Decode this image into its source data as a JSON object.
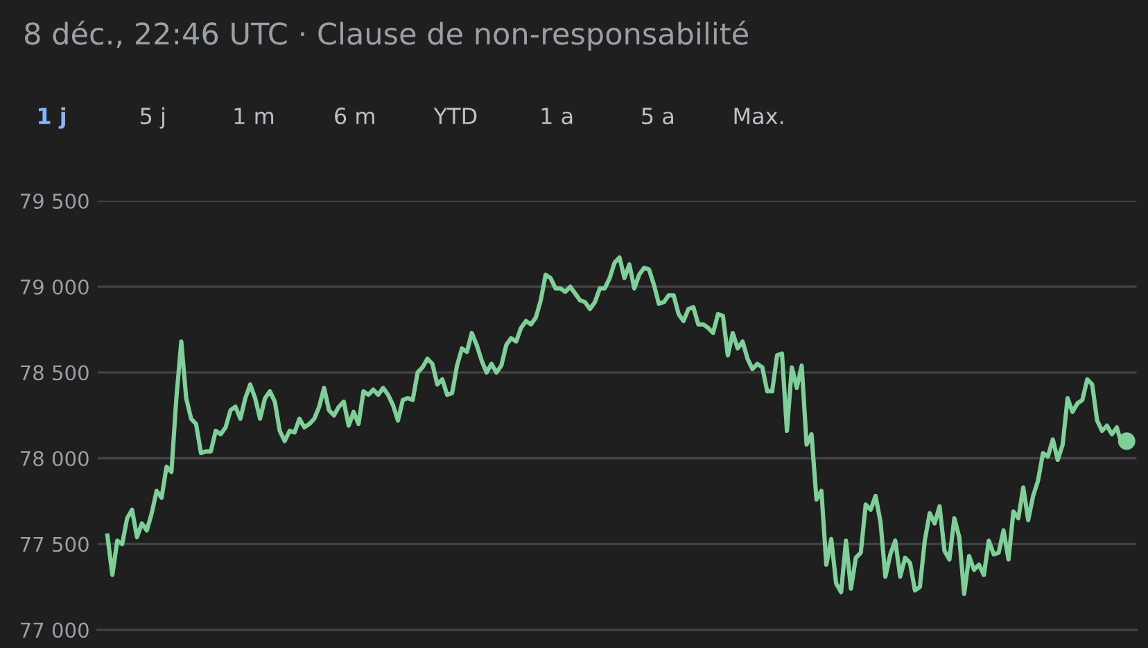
{
  "chart_data": {
    "type": "line",
    "title": "8 déc., 22:46 UTC · Clause de non-responsabilité",
    "annotations": [
      "1 j",
      "5 j",
      "1 m",
      "6 m",
      "YTD",
      "1 a",
      "5 a",
      "Max."
    ],
    "ylim": [
      77000,
      79500
    ],
    "yticks": [
      {
        "value": 77000,
        "label": "77 000"
      },
      {
        "value": 77500,
        "label": "77 500"
      },
      {
        "value": 78000,
        "label": "78 000"
      },
      {
        "value": 78500,
        "label": "78 500"
      },
      {
        "value": 79000,
        "label": "79 000"
      },
      {
        "value": 79500,
        "label": "79 500"
      }
    ],
    "grid": "y",
    "legend": false,
    "line_style": "solid",
    "marker": "none",
    "categories": [
      null,
      null,
      null,
      null,
      null,
      null,
      null,
      null,
      null,
      null,
      null,
      null,
      null,
      null,
      null,
      null,
      null,
      null,
      null,
      null,
      null,
      null,
      null,
      null,
      null,
      null,
      null,
      null,
      null,
      null,
      null,
      null,
      null,
      null,
      null,
      null,
      null,
      null,
      null,
      null,
      null,
      null,
      null,
      null,
      null,
      null,
      null,
      null,
      null,
      null,
      null,
      null,
      null,
      null,
      null,
      null,
      null,
      null,
      null,
      null,
      null,
      null,
      null,
      null,
      null,
      null,
      null,
      null,
      null,
      null,
      null,
      null,
      null,
      null,
      null,
      null,
      null,
      null,
      null,
      null,
      null,
      null,
      null,
      null,
      null,
      null,
      null,
      null,
      null,
      null,
      null,
      null,
      null,
      null,
      null,
      null,
      null,
      null,
      null,
      null,
      null,
      null,
      null,
      null,
      null,
      null,
      null,
      null,
      null,
      null,
      null,
      null,
      null,
      null,
      null,
      null,
      null,
      null,
      null,
      null,
      null,
      null,
      null,
      null,
      null,
      null,
      null,
      null,
      null,
      null,
      null,
      null,
      null,
      null,
      null,
      null,
      null,
      null,
      null,
      null,
      null,
      null,
      null,
      null,
      null,
      null,
      null,
      null,
      null,
      null,
      null,
      null,
      null,
      null,
      null,
      null,
      null,
      null,
      null,
      null,
      null,
      null,
      null,
      null,
      null,
      null,
      null,
      null,
      null,
      null,
      null,
      null,
      null,
      null,
      null,
      null,
      null,
      null,
      null,
      null,
      null,
      null,
      null,
      null,
      null,
      null,
      null,
      null,
      null,
      null,
      null,
      null,
      null,
      null,
      null,
      null,
      null,
      null,
      null,
      null,
      null,
      null,
      null,
      null,
      null,
      null,
      null,
      null
    ],
    "series": [
      {
        "color": "#7fcf98",
        "values": [
          77550,
          77320,
          77520,
          77500,
          77650,
          77700,
          77540,
          77620,
          77580,
          77680,
          77810,
          77770,
          77950,
          77920,
          78350,
          78680,
          78350,
          78230,
          78200,
          78030,
          78040,
          78040,
          78160,
          78140,
          78180,
          78280,
          78300,
          78230,
          78350,
          78430,
          78350,
          78230,
          78350,
          78390,
          78330,
          78160,
          78100,
          78160,
          78150,
          78230,
          78180,
          78200,
          78230,
          78300,
          78410,
          78280,
          78250,
          78300,
          78330,
          78190,
          78270,
          78200,
          78390,
          78370,
          78400,
          78370,
          78410,
          78370,
          78310,
          78220,
          78340,
          78350,
          78340,
          78500,
          78530,
          78580,
          78550,
          78430,
          78460,
          78370,
          78380,
          78540,
          78640,
          78620,
          78730,
          78660,
          78570,
          78500,
          78550,
          78500,
          78540,
          78660,
          78700,
          78680,
          78760,
          78800,
          78780,
          78820,
          78920,
          79070,
          79050,
          78990,
          78990,
          78970,
          79000,
          78960,
          78920,
          78910,
          78870,
          78910,
          78990,
          78990,
          79050,
          79140,
          79170,
          79050,
          79130,
          78990,
          79070,
          79110,
          79100,
          79010,
          78900,
          78910,
          78950,
          78950,
          78840,
          78800,
          78870,
          78880,
          78780,
          78780,
          78760,
          78730,
          78840,
          78830,
          78600,
          78730,
          78640,
          78680,
          78580,
          78520,
          78550,
          78530,
          78390,
          78390,
          78600,
          78610,
          78160,
          78530,
          78410,
          78540,
          78080,
          78140,
          77760,
          77810,
          77380,
          77530,
          77270,
          77220,
          77520,
          77240,
          77420,
          77450,
          77730,
          77700,
          77780,
          77630,
          77310,
          77440,
          77520,
          77310,
          77420,
          77390,
          77230,
          77250,
          77520,
          77680,
          77620,
          77720,
          77460,
          77410,
          77650,
          77540,
          77210,
          77430,
          77350,
          77380,
          77320,
          77520,
          77440,
          77450,
          77580,
          77410,
          77690,
          77650,
          77830,
          77640,
          77780,
          77870,
          78030,
          78010,
          78110,
          77990,
          78080,
          78350,
          78270,
          78320,
          78340,
          78460,
          78430,
          78220,
          78160,
          78190,
          78140,
          78180,
          78080,
          78100
        ]
      }
    ]
  }
}
